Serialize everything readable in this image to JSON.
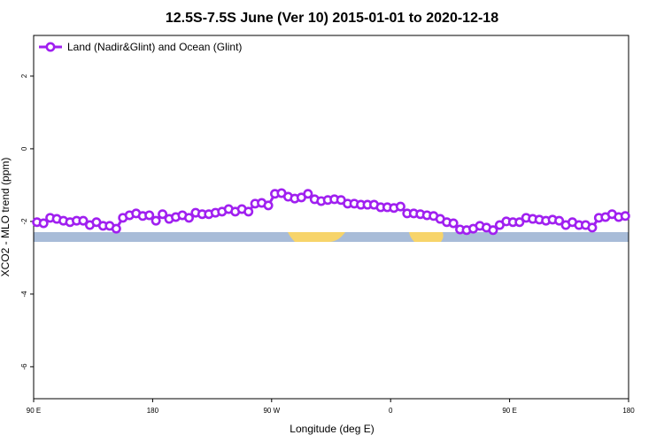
{
  "chart_data": {
    "type": "line",
    "title": "12.5S-7.5S June (Ver 10)   2015-01-01 to 2020-12-18",
    "x_label": "Longitude (deg E)",
    "y_label": "XCO2 - MLO trend (ppm)",
    "x": [
      92.5,
      97.5,
      102.5,
      107.5,
      112.5,
      117.5,
      122.5,
      127.5,
      132.5,
      137.5,
      142.5,
      147.5,
      152.5,
      157.5,
      162.5,
      167.5,
      172.5,
      177.5,
      182.5,
      187.5,
      192.5,
      197.5,
      202.5,
      207.5,
      212.5,
      217.5,
      222.5,
      227.5,
      232.5,
      237.5,
      242.5,
      247.5,
      252.5,
      257.5,
      262.5,
      267.5,
      272.5,
      277.5,
      282.5,
      287.5,
      292.5,
      297.5,
      302.5,
      307.5,
      312.5,
      317.5,
      322.5,
      327.5,
      332.5,
      337.5,
      342.5,
      347.5,
      352.5,
      357.5,
      362.5,
      367.5,
      372.5,
      377.5,
      382.5,
      387.5,
      392.5,
      397.5,
      402.5,
      407.5,
      412.5,
      417.5,
      422.5,
      427.5,
      432.5,
      437.5,
      442.5,
      447.5,
      452.5,
      457.5,
      462.5,
      467.5,
      472.5,
      477.5,
      482.5,
      487.5,
      492.5,
      497.5,
      502.5,
      507.5,
      512.5,
      517.5,
      522.5,
      527.5,
      532.5,
      537.5
    ],
    "series": [
      {
        "name": "Land (Nadir&Glint) and Ocean (Glint)",
        "color": "#a020f0",
        "values": [
          -2.02,
          -2.05,
          -1.9,
          -1.93,
          -1.98,
          -2.02,
          -1.98,
          -1.98,
          -2.1,
          -2.02,
          -2.12,
          -2.12,
          -2.2,
          -1.9,
          -1.83,
          -1.78,
          -1.85,
          -1.83,
          -1.98,
          -1.8,
          -1.93,
          -1.88,
          -1.83,
          -1.9,
          -1.76,
          -1.8,
          -1.8,
          -1.76,
          -1.73,
          -1.66,
          -1.73,
          -1.66,
          -1.73,
          -1.51,
          -1.49,
          -1.56,
          -1.24,
          -1.22,
          -1.32,
          -1.37,
          -1.34,
          -1.24,
          -1.39,
          -1.44,
          -1.41,
          -1.39,
          -1.41,
          -1.51,
          -1.51,
          -1.54,
          -1.54,
          -1.54,
          -1.61,
          -1.61,
          -1.63,
          -1.59,
          -1.78,
          -1.78,
          -1.8,
          -1.83,
          -1.85,
          -1.93,
          -2.02,
          -2.05,
          -2.22,
          -2.24,
          -2.2,
          -2.12,
          -2.17,
          -2.24,
          -2.1,
          -2.0,
          -2.02,
          -2.02,
          -1.9,
          -1.93,
          -1.95,
          -1.98,
          -1.95,
          -1.98,
          -2.1,
          -2.02,
          -2.1,
          -2.1,
          -2.17,
          -1.9,
          -1.88,
          -1.8,
          -1.88,
          -1.85
        ]
      }
    ],
    "xlim": [
      90,
      540
    ],
    "xticks": [
      {
        "value": 90,
        "label": "90 E"
      },
      180,
      {
        "value": 270,
        "label": "90 W"
      },
      {
        "value": 360,
        "label": "0"
      },
      {
        "value": 450,
        "label": "90 E"
      },
      {
        "value": 540,
        "label": "180"
      }
    ],
    "ylim": [
      -6.88,
      3.12
    ],
    "yticks": [
      -6,
      -4,
      -2,
      0,
      2
    ],
    "legend": "top-left"
  }
}
